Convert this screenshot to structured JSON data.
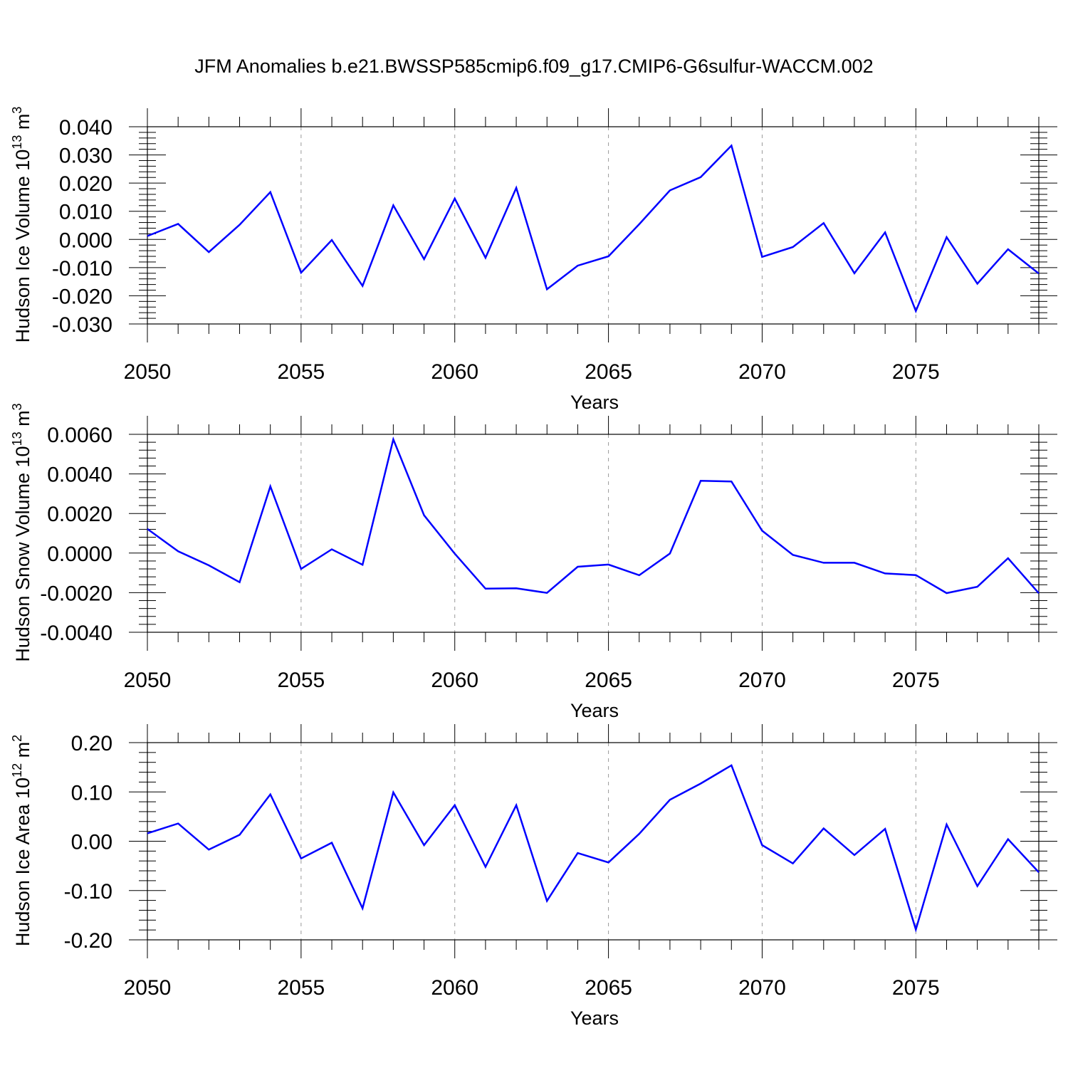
{
  "title": "JFM Anomalies b.e21.BWSSP585cmip6.f09_g17.CMIP6-G6sulfur-WACCM.002",
  "line_color": "#0000ff",
  "chart_data": [
    {
      "type": "line",
      "xlabel": "Years",
      "ylabel": "Hudson Ice Volume 10",
      "ylabel_exp": "13",
      "ylabel_unit": " m",
      "ylabel_unit_exp": "3",
      "xlim": [
        2050,
        2079
      ],
      "ylim": [
        -0.03,
        0.04
      ],
      "grid": "dashed vertical lines at labeled years",
      "xticks": [
        2050,
        2055,
        2060,
        2065,
        2070,
        2075
      ],
      "xtick_labels": [
        "2050",
        "2055",
        "2060",
        "2065",
        "2070",
        "2075"
      ],
      "yticks": [
        -0.03,
        -0.02,
        -0.01,
        0.0,
        0.01,
        0.02,
        0.03,
        0.04
      ],
      "ytick_labels": [
        "-0.030",
        "-0.020",
        "-0.010",
        "0.000",
        "0.010",
        "0.020",
        "0.030",
        "0.040"
      ],
      "x": [
        2050,
        2051,
        2052,
        2053,
        2054,
        2055,
        2056,
        2057,
        2058,
        2059,
        2060,
        2061,
        2062,
        2063,
        2064,
        2065,
        2066,
        2067,
        2068,
        2069,
        2070,
        2071,
        2072,
        2073,
        2074,
        2075,
        2076,
        2077,
        2078,
        2079
      ],
      "y": [
        0.0012,
        0.0055,
        -0.0045,
        0.0052,
        0.0168,
        -0.0118,
        -0.0002,
        -0.0165,
        0.0121,
        -0.007,
        0.0145,
        -0.0065,
        0.0183,
        -0.0177,
        -0.0093,
        -0.006,
        0.0054,
        0.0174,
        0.0221,
        0.0333,
        -0.0062,
        -0.0027,
        0.0058,
        -0.012,
        0.0025,
        -0.0254,
        0.0008,
        -0.0157,
        -0.0035,
        -0.0121
      ]
    },
    {
      "type": "line",
      "xlabel": "Years",
      "ylabel": "Hudson Snow Volume 10",
      "ylabel_exp": "13",
      "ylabel_unit": " m",
      "ylabel_unit_exp": "3",
      "xlim": [
        2050,
        2079
      ],
      "ylim": [
        -0.004,
        0.006
      ],
      "grid": "dashed vertical lines at labeled years",
      "xticks": [
        2050,
        2055,
        2060,
        2065,
        2070,
        2075
      ],
      "xtick_labels": [
        "2050",
        "2055",
        "2060",
        "2065",
        "2070",
        "2075"
      ],
      "yticks": [
        -0.004,
        -0.002,
        0.0,
        0.002,
        0.004,
        0.006
      ],
      "ytick_labels": [
        "-0.0040",
        "-0.0020",
        "0.0000",
        "0.0020",
        "0.0040",
        "0.0060"
      ],
      "x": [
        2050,
        2051,
        2052,
        2053,
        2054,
        2055,
        2056,
        2057,
        2058,
        2059,
        2060,
        2061,
        2062,
        2063,
        2064,
        2065,
        2066,
        2067,
        2068,
        2069,
        2070,
        2071,
        2072,
        2073,
        2074,
        2075,
        2076,
        2077,
        2078,
        2079
      ],
      "y": [
        0.00122,
        9e-05,
        -0.00062,
        -0.00147,
        0.00337,
        -0.0008,
        0.00019,
        -0.00059,
        0.00575,
        0.00191,
        -3e-05,
        -0.0018,
        -0.00178,
        -0.00201,
        -0.00069,
        -0.00058,
        -0.00112,
        -2e-05,
        0.00365,
        0.00362,
        0.00113,
        -9e-05,
        -0.00049,
        -0.00049,
        -0.00103,
        -0.00111,
        -0.00202,
        -0.0017,
        -0.00026,
        -0.00203
      ]
    },
    {
      "type": "line",
      "xlabel": "Years",
      "ylabel": "Hudson Ice Area 10",
      "ylabel_exp": "12",
      "ylabel_unit": " m",
      "ylabel_unit_exp": "2",
      "xlim": [
        2050,
        2079
      ],
      "ylim": [
        -0.2,
        0.2
      ],
      "grid": "dashed vertical lines at labeled years",
      "xticks": [
        2050,
        2055,
        2060,
        2065,
        2070,
        2075
      ],
      "xtick_labels": [
        "2050",
        "2055",
        "2060",
        "2065",
        "2070",
        "2075"
      ],
      "yticks": [
        -0.2,
        -0.1,
        0.0,
        0.1,
        0.2
      ],
      "ytick_labels": [
        "-0.20",
        "-0.10",
        "0.00",
        "0.10",
        "0.20"
      ],
      "x": [
        2050,
        2051,
        2052,
        2053,
        2054,
        2055,
        2056,
        2057,
        2058,
        2059,
        2060,
        2061,
        2062,
        2063,
        2064,
        2065,
        2066,
        2067,
        2068,
        2069,
        2070,
        2071,
        2072,
        2073,
        2074,
        2075,
        2076,
        2077,
        2078,
        2079
      ],
      "y": [
        0.016,
        0.036,
        -0.017,
        0.013,
        0.095,
        -0.035,
        -0.003,
        -0.136,
        0.099,
        -0.008,
        0.073,
        -0.052,
        0.073,
        -0.121,
        -0.024,
        -0.043,
        0.015,
        0.084,
        0.117,
        0.154,
        -0.008,
        -0.045,
        0.026,
        -0.028,
        0.025,
        -0.179,
        0.034,
        -0.091,
        0.004,
        -0.063
      ]
    }
  ]
}
